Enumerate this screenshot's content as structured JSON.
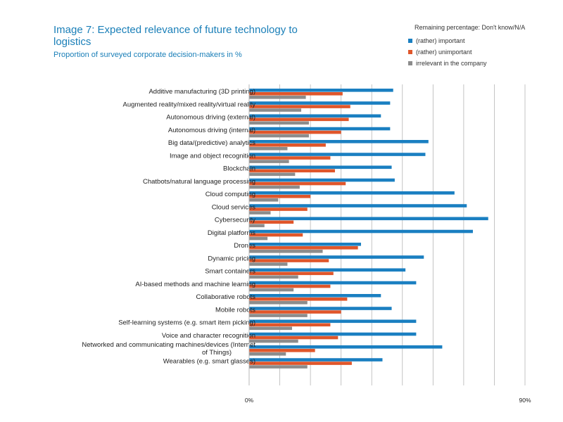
{
  "chart_data": {
    "type": "bar",
    "orientation": "horizontal",
    "title": "Image 7: Expected relevance of future technology to logistics",
    "subtitle": "Proportion of surveyed corporate decision-makers in %",
    "note": "Remaining percentage: Don't know/N/A",
    "legend_position": "top-right",
    "grid": true,
    "xlim": [
      0,
      90
    ],
    "tick_labels": [
      "0%",
      "90%"
    ],
    "colors": {
      "important": "#1a7fc1",
      "unimportant": "#e0562a",
      "irrelevant": "#8c8c8c"
    },
    "categories": [
      "Additive manufacturing (3D printing)",
      "Augmented reality/mixed reality/virtual reality",
      "Autonomous driving (external)",
      "Autonomous driving (internal)",
      "Big data/(predictive) analytics",
      "Image and object recognition",
      "Blockchain",
      "Chatbots/natural language processing",
      "Cloud computing",
      "Cloud services",
      "Cybersecurity",
      "Digital platforms",
      "Drones",
      "Dynamic pricing",
      "Smart containers",
      "AI-based methods and machine learning",
      "Collaborative robots",
      "Mobile robots",
      "Self-learning systems (e.g. smart item picking)",
      "Voice and character recognition",
      "Networked and communicating machines/devices (Internet of Things)",
      "Wearables (e.g. smart glasses)"
    ],
    "series": [
      {
        "name": "(rather) important",
        "values": [
          47,
          46,
          43,
          46,
          58.5,
          57.5,
          46.5,
          47.5,
          67,
          71,
          78,
          73,
          36.5,
          57,
          51,
          54.5,
          43,
          46.5,
          54.5,
          54.5,
          63,
          43.5
        ]
      },
      {
        "name": "(rather) unimportant",
        "values": [
          30.5,
          33,
          32.5,
          30,
          25,
          26.5,
          28,
          31.5,
          20,
          19,
          14.5,
          17.5,
          35.5,
          26,
          27.5,
          26.5,
          32,
          30,
          26.5,
          29,
          21.5,
          33.5
        ]
      },
      {
        "name": "irrelevant in the company",
        "values": [
          18.5,
          17,
          19.5,
          19.5,
          12.5,
          13,
          15,
          16.5,
          9.5,
          7,
          5,
          6,
          24,
          12.5,
          16,
          14.5,
          19,
          19,
          14,
          16,
          12,
          19
        ]
      }
    ]
  }
}
